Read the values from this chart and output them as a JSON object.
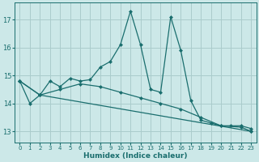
{
  "xlabel": "Humidex (Indice chaleur)",
  "xlim": [
    -0.5,
    23.5
  ],
  "ylim": [
    12.6,
    17.6
  ],
  "yticks": [
    13,
    14,
    15,
    16,
    17
  ],
  "xticks": [
    0,
    1,
    2,
    3,
    4,
    5,
    6,
    7,
    8,
    9,
    10,
    11,
    12,
    13,
    14,
    15,
    16,
    17,
    18,
    19,
    20,
    21,
    22,
    23
  ],
  "bg_color": "#cce8e8",
  "grid_color": "#aacccc",
  "line_color": "#1a6e6e",
  "lines": [
    {
      "x": [
        0,
        1,
        2,
        3,
        4,
        5,
        6,
        7,
        8,
        9,
        10,
        11,
        12,
        13,
        14,
        15,
        16,
        17,
        18,
        19,
        20,
        21,
        22,
        23
      ],
      "y": [
        14.8,
        14.0,
        14.3,
        14.8,
        14.6,
        14.9,
        14.8,
        14.85,
        15.3,
        15.5,
        16.1,
        17.3,
        16.1,
        14.5,
        14.4,
        17.1,
        15.9,
        14.1,
        13.4,
        13.3,
        13.2,
        13.2,
        13.2,
        13.1
      ]
    },
    {
      "x": [
        0,
        2,
        23
      ],
      "y": [
        14.8,
        14.3,
        13.0
      ]
    },
    {
      "x": [
        0,
        2,
        4,
        6,
        8,
        10,
        12,
        14,
        16,
        18,
        20,
        22,
        23
      ],
      "y": [
        14.8,
        14.3,
        14.5,
        14.7,
        14.6,
        14.4,
        14.2,
        14.0,
        13.8,
        13.5,
        13.2,
        13.15,
        13.0
      ]
    }
  ]
}
